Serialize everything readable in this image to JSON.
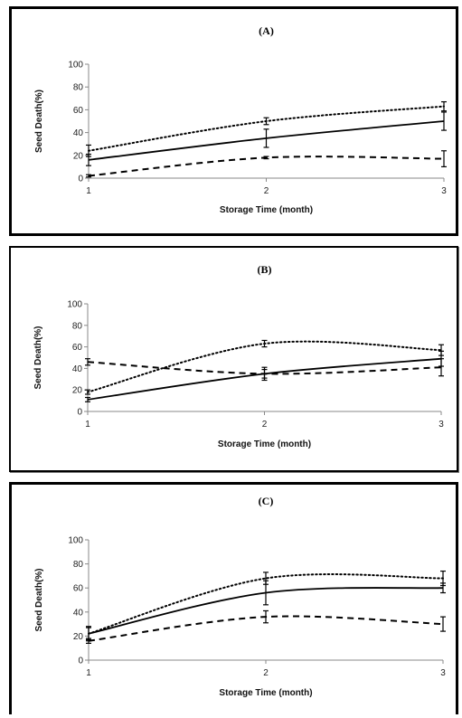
{
  "chart_data": [
    {
      "type": "line",
      "title": "(A)",
      "xlabel": "Storage Time (month)",
      "ylabel": "Seed Death(%)",
      "x": [
        1,
        2,
        3
      ],
      "x_tick_labels": [
        "1",
        "2",
        "3"
      ],
      "ylim": [
        0,
        100
      ],
      "y_tick_labels": [
        "0",
        "20",
        "40",
        "60",
        "80",
        "100"
      ],
      "grid": false,
      "series": [
        {
          "style": "solid",
          "values": [
            16,
            35,
            50
          ],
          "errors": [
            5,
            8,
            8
          ]
        },
        {
          "style": "dotted",
          "values": [
            24,
            50,
            63
          ],
          "errors": [
            5,
            3,
            4
          ]
        },
        {
          "style": "dashed",
          "values": [
            2,
            18,
            17
          ],
          "errors": [
            1,
            1,
            7
          ]
        }
      ]
    },
    {
      "type": "line",
      "title": "(B)",
      "xlabel": "Storage Time (month)",
      "ylabel": "Seed Death(%)",
      "x": [
        1,
        2,
        3
      ],
      "x_tick_labels": [
        "1",
        "2",
        "3"
      ],
      "ylim": [
        0,
        100
      ],
      "y_tick_labels": [
        "0",
        "20",
        "40",
        "60",
        "80",
        "100"
      ],
      "grid": false,
      "series": [
        {
          "style": "solid",
          "values": [
            11,
            35,
            49
          ],
          "errors": [
            2,
            6,
            7
          ]
        },
        {
          "style": "dotted",
          "values": [
            18,
            63,
            57
          ],
          "errors": [
            2,
            3,
            5
          ]
        },
        {
          "style": "dashed",
          "values": [
            46,
            35,
            41
          ],
          "errors": [
            3,
            4,
            8
          ]
        }
      ]
    },
    {
      "type": "line",
      "title": "(C)",
      "xlabel": "Storage Time (month)",
      "ylabel": "Seed Death(%)",
      "x": [
        1,
        2,
        3
      ],
      "x_tick_labels": [
        "1",
        "2",
        "3"
      ],
      "ylim": [
        0,
        100
      ],
      "y_tick_labels": [
        "0",
        "20",
        "40",
        "60",
        "80",
        "100"
      ],
      "grid": false,
      "series": [
        {
          "style": "solid",
          "values": [
            22,
            56,
            60
          ],
          "errors": [
            6,
            10,
            4
          ]
        },
        {
          "style": "dotted",
          "values": [
            22,
            68,
            68
          ],
          "errors": [
            5,
            5,
            6
          ]
        },
        {
          "style": "dashed",
          "values": [
            16,
            36,
            30
          ],
          "errors": [
            2,
            5,
            6
          ]
        }
      ]
    }
  ]
}
